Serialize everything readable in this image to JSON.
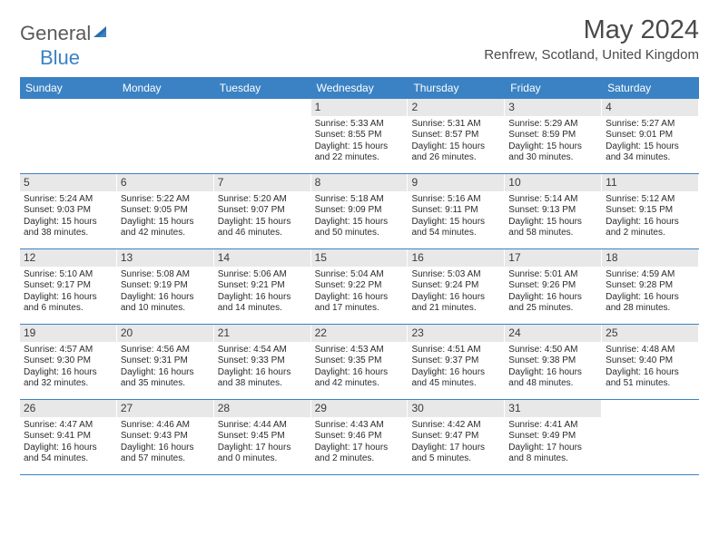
{
  "logo": {
    "text1": "General",
    "text2": "Blue"
  },
  "title": "May 2024",
  "location": "Renfrew, Scotland, United Kingdom",
  "colors": {
    "header_bg": "#3b82c4",
    "header_text": "#ffffff",
    "daynum_bg": "#e8e8e8",
    "border": "#3b82c4",
    "text": "#2b2b2b",
    "title_text": "#4a4a4a",
    "logo_gray": "#5a5a5a",
    "logo_blue": "#3b82c4"
  },
  "weekdays": [
    "Sunday",
    "Monday",
    "Tuesday",
    "Wednesday",
    "Thursday",
    "Friday",
    "Saturday"
  ],
  "weeks": [
    [
      {
        "n": "",
        "sr": "",
        "ss": "",
        "dl": ""
      },
      {
        "n": "",
        "sr": "",
        "ss": "",
        "dl": ""
      },
      {
        "n": "",
        "sr": "",
        "ss": "",
        "dl": ""
      },
      {
        "n": "1",
        "sr": "Sunrise: 5:33 AM",
        "ss": "Sunset: 8:55 PM",
        "dl": "Daylight: 15 hours and 22 minutes."
      },
      {
        "n": "2",
        "sr": "Sunrise: 5:31 AM",
        "ss": "Sunset: 8:57 PM",
        "dl": "Daylight: 15 hours and 26 minutes."
      },
      {
        "n": "3",
        "sr": "Sunrise: 5:29 AM",
        "ss": "Sunset: 8:59 PM",
        "dl": "Daylight: 15 hours and 30 minutes."
      },
      {
        "n": "4",
        "sr": "Sunrise: 5:27 AM",
        "ss": "Sunset: 9:01 PM",
        "dl": "Daylight: 15 hours and 34 minutes."
      }
    ],
    [
      {
        "n": "5",
        "sr": "Sunrise: 5:24 AM",
        "ss": "Sunset: 9:03 PM",
        "dl": "Daylight: 15 hours and 38 minutes."
      },
      {
        "n": "6",
        "sr": "Sunrise: 5:22 AM",
        "ss": "Sunset: 9:05 PM",
        "dl": "Daylight: 15 hours and 42 minutes."
      },
      {
        "n": "7",
        "sr": "Sunrise: 5:20 AM",
        "ss": "Sunset: 9:07 PM",
        "dl": "Daylight: 15 hours and 46 minutes."
      },
      {
        "n": "8",
        "sr": "Sunrise: 5:18 AM",
        "ss": "Sunset: 9:09 PM",
        "dl": "Daylight: 15 hours and 50 minutes."
      },
      {
        "n": "9",
        "sr": "Sunrise: 5:16 AM",
        "ss": "Sunset: 9:11 PM",
        "dl": "Daylight: 15 hours and 54 minutes."
      },
      {
        "n": "10",
        "sr": "Sunrise: 5:14 AM",
        "ss": "Sunset: 9:13 PM",
        "dl": "Daylight: 15 hours and 58 minutes."
      },
      {
        "n": "11",
        "sr": "Sunrise: 5:12 AM",
        "ss": "Sunset: 9:15 PM",
        "dl": "Daylight: 16 hours and 2 minutes."
      }
    ],
    [
      {
        "n": "12",
        "sr": "Sunrise: 5:10 AM",
        "ss": "Sunset: 9:17 PM",
        "dl": "Daylight: 16 hours and 6 minutes."
      },
      {
        "n": "13",
        "sr": "Sunrise: 5:08 AM",
        "ss": "Sunset: 9:19 PM",
        "dl": "Daylight: 16 hours and 10 minutes."
      },
      {
        "n": "14",
        "sr": "Sunrise: 5:06 AM",
        "ss": "Sunset: 9:21 PM",
        "dl": "Daylight: 16 hours and 14 minutes."
      },
      {
        "n": "15",
        "sr": "Sunrise: 5:04 AM",
        "ss": "Sunset: 9:22 PM",
        "dl": "Daylight: 16 hours and 17 minutes."
      },
      {
        "n": "16",
        "sr": "Sunrise: 5:03 AM",
        "ss": "Sunset: 9:24 PM",
        "dl": "Daylight: 16 hours and 21 minutes."
      },
      {
        "n": "17",
        "sr": "Sunrise: 5:01 AM",
        "ss": "Sunset: 9:26 PM",
        "dl": "Daylight: 16 hours and 25 minutes."
      },
      {
        "n": "18",
        "sr": "Sunrise: 4:59 AM",
        "ss": "Sunset: 9:28 PM",
        "dl": "Daylight: 16 hours and 28 minutes."
      }
    ],
    [
      {
        "n": "19",
        "sr": "Sunrise: 4:57 AM",
        "ss": "Sunset: 9:30 PM",
        "dl": "Daylight: 16 hours and 32 minutes."
      },
      {
        "n": "20",
        "sr": "Sunrise: 4:56 AM",
        "ss": "Sunset: 9:31 PM",
        "dl": "Daylight: 16 hours and 35 minutes."
      },
      {
        "n": "21",
        "sr": "Sunrise: 4:54 AM",
        "ss": "Sunset: 9:33 PM",
        "dl": "Daylight: 16 hours and 38 minutes."
      },
      {
        "n": "22",
        "sr": "Sunrise: 4:53 AM",
        "ss": "Sunset: 9:35 PM",
        "dl": "Daylight: 16 hours and 42 minutes."
      },
      {
        "n": "23",
        "sr": "Sunrise: 4:51 AM",
        "ss": "Sunset: 9:37 PM",
        "dl": "Daylight: 16 hours and 45 minutes."
      },
      {
        "n": "24",
        "sr": "Sunrise: 4:50 AM",
        "ss": "Sunset: 9:38 PM",
        "dl": "Daylight: 16 hours and 48 minutes."
      },
      {
        "n": "25",
        "sr": "Sunrise: 4:48 AM",
        "ss": "Sunset: 9:40 PM",
        "dl": "Daylight: 16 hours and 51 minutes."
      }
    ],
    [
      {
        "n": "26",
        "sr": "Sunrise: 4:47 AM",
        "ss": "Sunset: 9:41 PM",
        "dl": "Daylight: 16 hours and 54 minutes."
      },
      {
        "n": "27",
        "sr": "Sunrise: 4:46 AM",
        "ss": "Sunset: 9:43 PM",
        "dl": "Daylight: 16 hours and 57 minutes."
      },
      {
        "n": "28",
        "sr": "Sunrise: 4:44 AM",
        "ss": "Sunset: 9:45 PM",
        "dl": "Daylight: 17 hours and 0 minutes."
      },
      {
        "n": "29",
        "sr": "Sunrise: 4:43 AM",
        "ss": "Sunset: 9:46 PM",
        "dl": "Daylight: 17 hours and 2 minutes."
      },
      {
        "n": "30",
        "sr": "Sunrise: 4:42 AM",
        "ss": "Sunset: 9:47 PM",
        "dl": "Daylight: 17 hours and 5 minutes."
      },
      {
        "n": "31",
        "sr": "Sunrise: 4:41 AM",
        "ss": "Sunset: 9:49 PM",
        "dl": "Daylight: 17 hours and 8 minutes."
      },
      {
        "n": "",
        "sr": "",
        "ss": "",
        "dl": ""
      }
    ]
  ]
}
